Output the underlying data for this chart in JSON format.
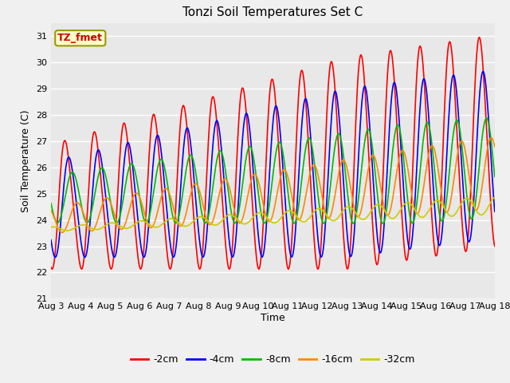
{
  "title": "Tonzi Soil Temperatures Set C",
  "xlabel": "Time",
  "ylabel": "Soil Temperature (C)",
  "ylim": [
    21.0,
    31.5
  ],
  "yticks": [
    21.0,
    22.0,
    23.0,
    24.0,
    25.0,
    26.0,
    27.0,
    28.0,
    29.0,
    30.0,
    31.0
  ],
  "xtick_labels": [
    "Aug 3",
    "Aug 4",
    "Aug 5",
    "Aug 6",
    "Aug 7",
    "Aug 8",
    "Aug 9",
    "Aug 10",
    "Aug 11",
    "Aug 12",
    "Aug 13",
    "Aug 14",
    "Aug 15",
    "Aug 16",
    "Aug 17",
    "Aug 18"
  ],
  "legend_labels": [
    "-2cm",
    "-4cm",
    "-8cm",
    "-16cm",
    "-32cm"
  ],
  "legend_colors": [
    "#ff0000",
    "#0000ff",
    "#00bb00",
    "#ff8800",
    "#cccc00"
  ],
  "annotation_text": "TZ_fmet",
  "annotation_box_facecolor": "#ffffcc",
  "annotation_box_edgecolor": "#999900",
  "annotation_text_color": "#cc0000",
  "plot_bg_color": "#e8e8e8",
  "fig_bg_color": "#f0f0f0",
  "grid_color": "#ffffff",
  "line_colors": [
    "#ff0000",
    "#0000ff",
    "#00bb00",
    "#ff8800",
    "#cccc00"
  ],
  "line_width": 1.2,
  "title_fontsize": 11,
  "axis_label_fontsize": 9,
  "tick_fontsize": 8,
  "legend_fontsize": 9
}
